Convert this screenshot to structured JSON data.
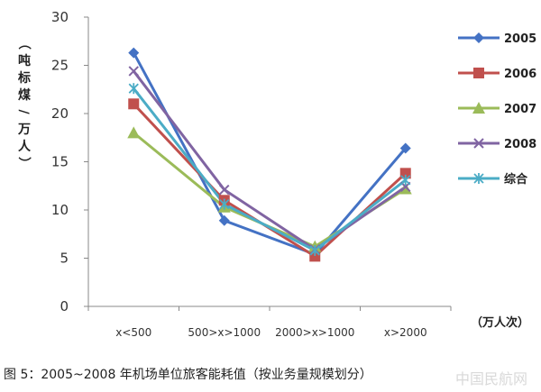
{
  "caption": "图 5：2005~2008 年机场单位旅客能耗值（按业务量规模划分）",
  "watermark": "中国民航网",
  "chart_data": {
    "type": "line",
    "categories": [
      "x<500",
      "500>x>1000",
      "2000>x>1000",
      "x>2000"
    ],
    "xunit": "（万人次）",
    "ylabel": "（吨标煤/万人）",
    "ylim": [
      0,
      30
    ],
    "yticks": [
      0,
      5,
      10,
      15,
      20,
      25,
      30
    ],
    "grid": false,
    "legend": "right",
    "series": [
      {
        "name": "2005",
        "values": [
          26.3,
          8.9,
          5.4,
          16.4
        ],
        "color": "#4472C4",
        "marker": "diamond"
      },
      {
        "name": "2006",
        "values": [
          21.0,
          11.0,
          5.2,
          13.8
        ],
        "color": "#C0504D",
        "marker": "square"
      },
      {
        "name": "2007",
        "values": [
          18.0,
          10.3,
          6.2,
          12.2
        ],
        "color": "#9BBB59",
        "marker": "triangle"
      },
      {
        "name": "2008",
        "values": [
          24.4,
          12.1,
          5.9,
          12.4
        ],
        "color": "#8064A2",
        "marker": "x"
      },
      {
        "name": "综合",
        "values": [
          22.6,
          10.6,
          5.8,
          13.1
        ],
        "color": "#4BACC6",
        "marker": "star"
      }
    ]
  }
}
